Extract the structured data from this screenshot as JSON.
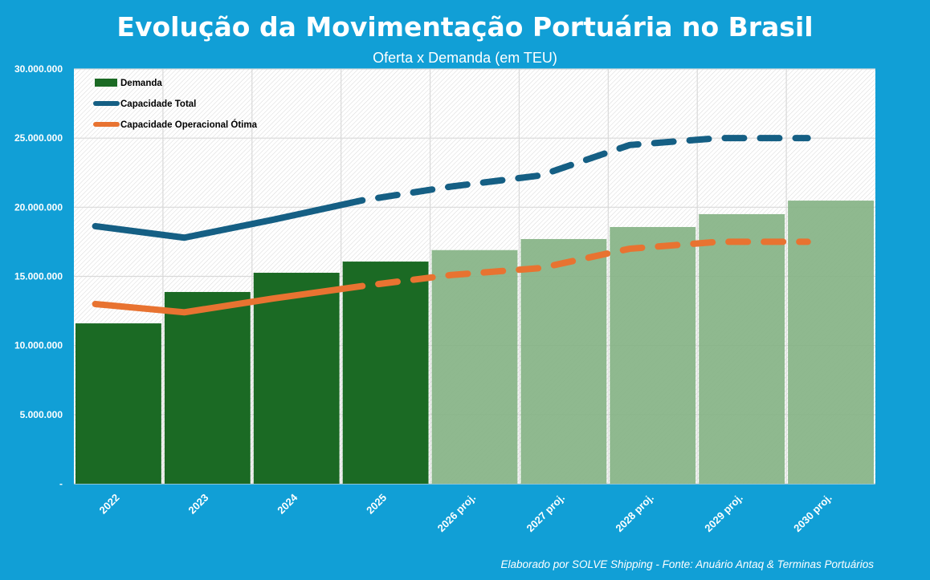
{
  "chart_data": {
    "type": "bar",
    "title": "Evolução  da Movimentação Portuária no Brasil",
    "subtitle": "Oferta x Demanda (em TEU)",
    "footer": "Elaborado por SOLVE Shipping - Fonte: Anuário Antaq & Terminas Portuários",
    "categories": [
      "2022",
      "2023",
      "2024",
      "2025",
      "2026 proj.",
      "2027 proj.",
      "2028 proj.",
      "2029 proj.",
      "2030 proj."
    ],
    "ylim": [
      0,
      30000000
    ],
    "yticks": [
      "-",
      "5.000.000",
      "10.000.000",
      "15.000.000",
      "20.000.000",
      "25.000.000",
      "30.000.000"
    ],
    "grid": true,
    "legend_placement": "top-left",
    "series": [
      {
        "name": "Demanda",
        "kind": "bar",
        "color": "#1b6a24",
        "projected_color": "#86b386",
        "values": [
          11600000,
          13870000,
          15260000,
          16070000,
          16900000,
          17700000,
          18570000,
          19500000,
          20480000
        ]
      },
      {
        "name": "Capacidade Total",
        "kind": "line",
        "color": "#155f84",
        "values": [
          18630000,
          17800000,
          19100000,
          20500000,
          21500000,
          22300000,
          24500000,
          25000000,
          25000000
        ]
      },
      {
        "name": "Capacidade Operacional Ótima",
        "kind": "line",
        "color": "#e87331",
        "values": [
          13000000,
          12400000,
          13400000,
          14300000,
          15100000,
          15600000,
          17000000,
          17500000,
          17500000
        ]
      }
    ],
    "projected_from_index": 4
  }
}
